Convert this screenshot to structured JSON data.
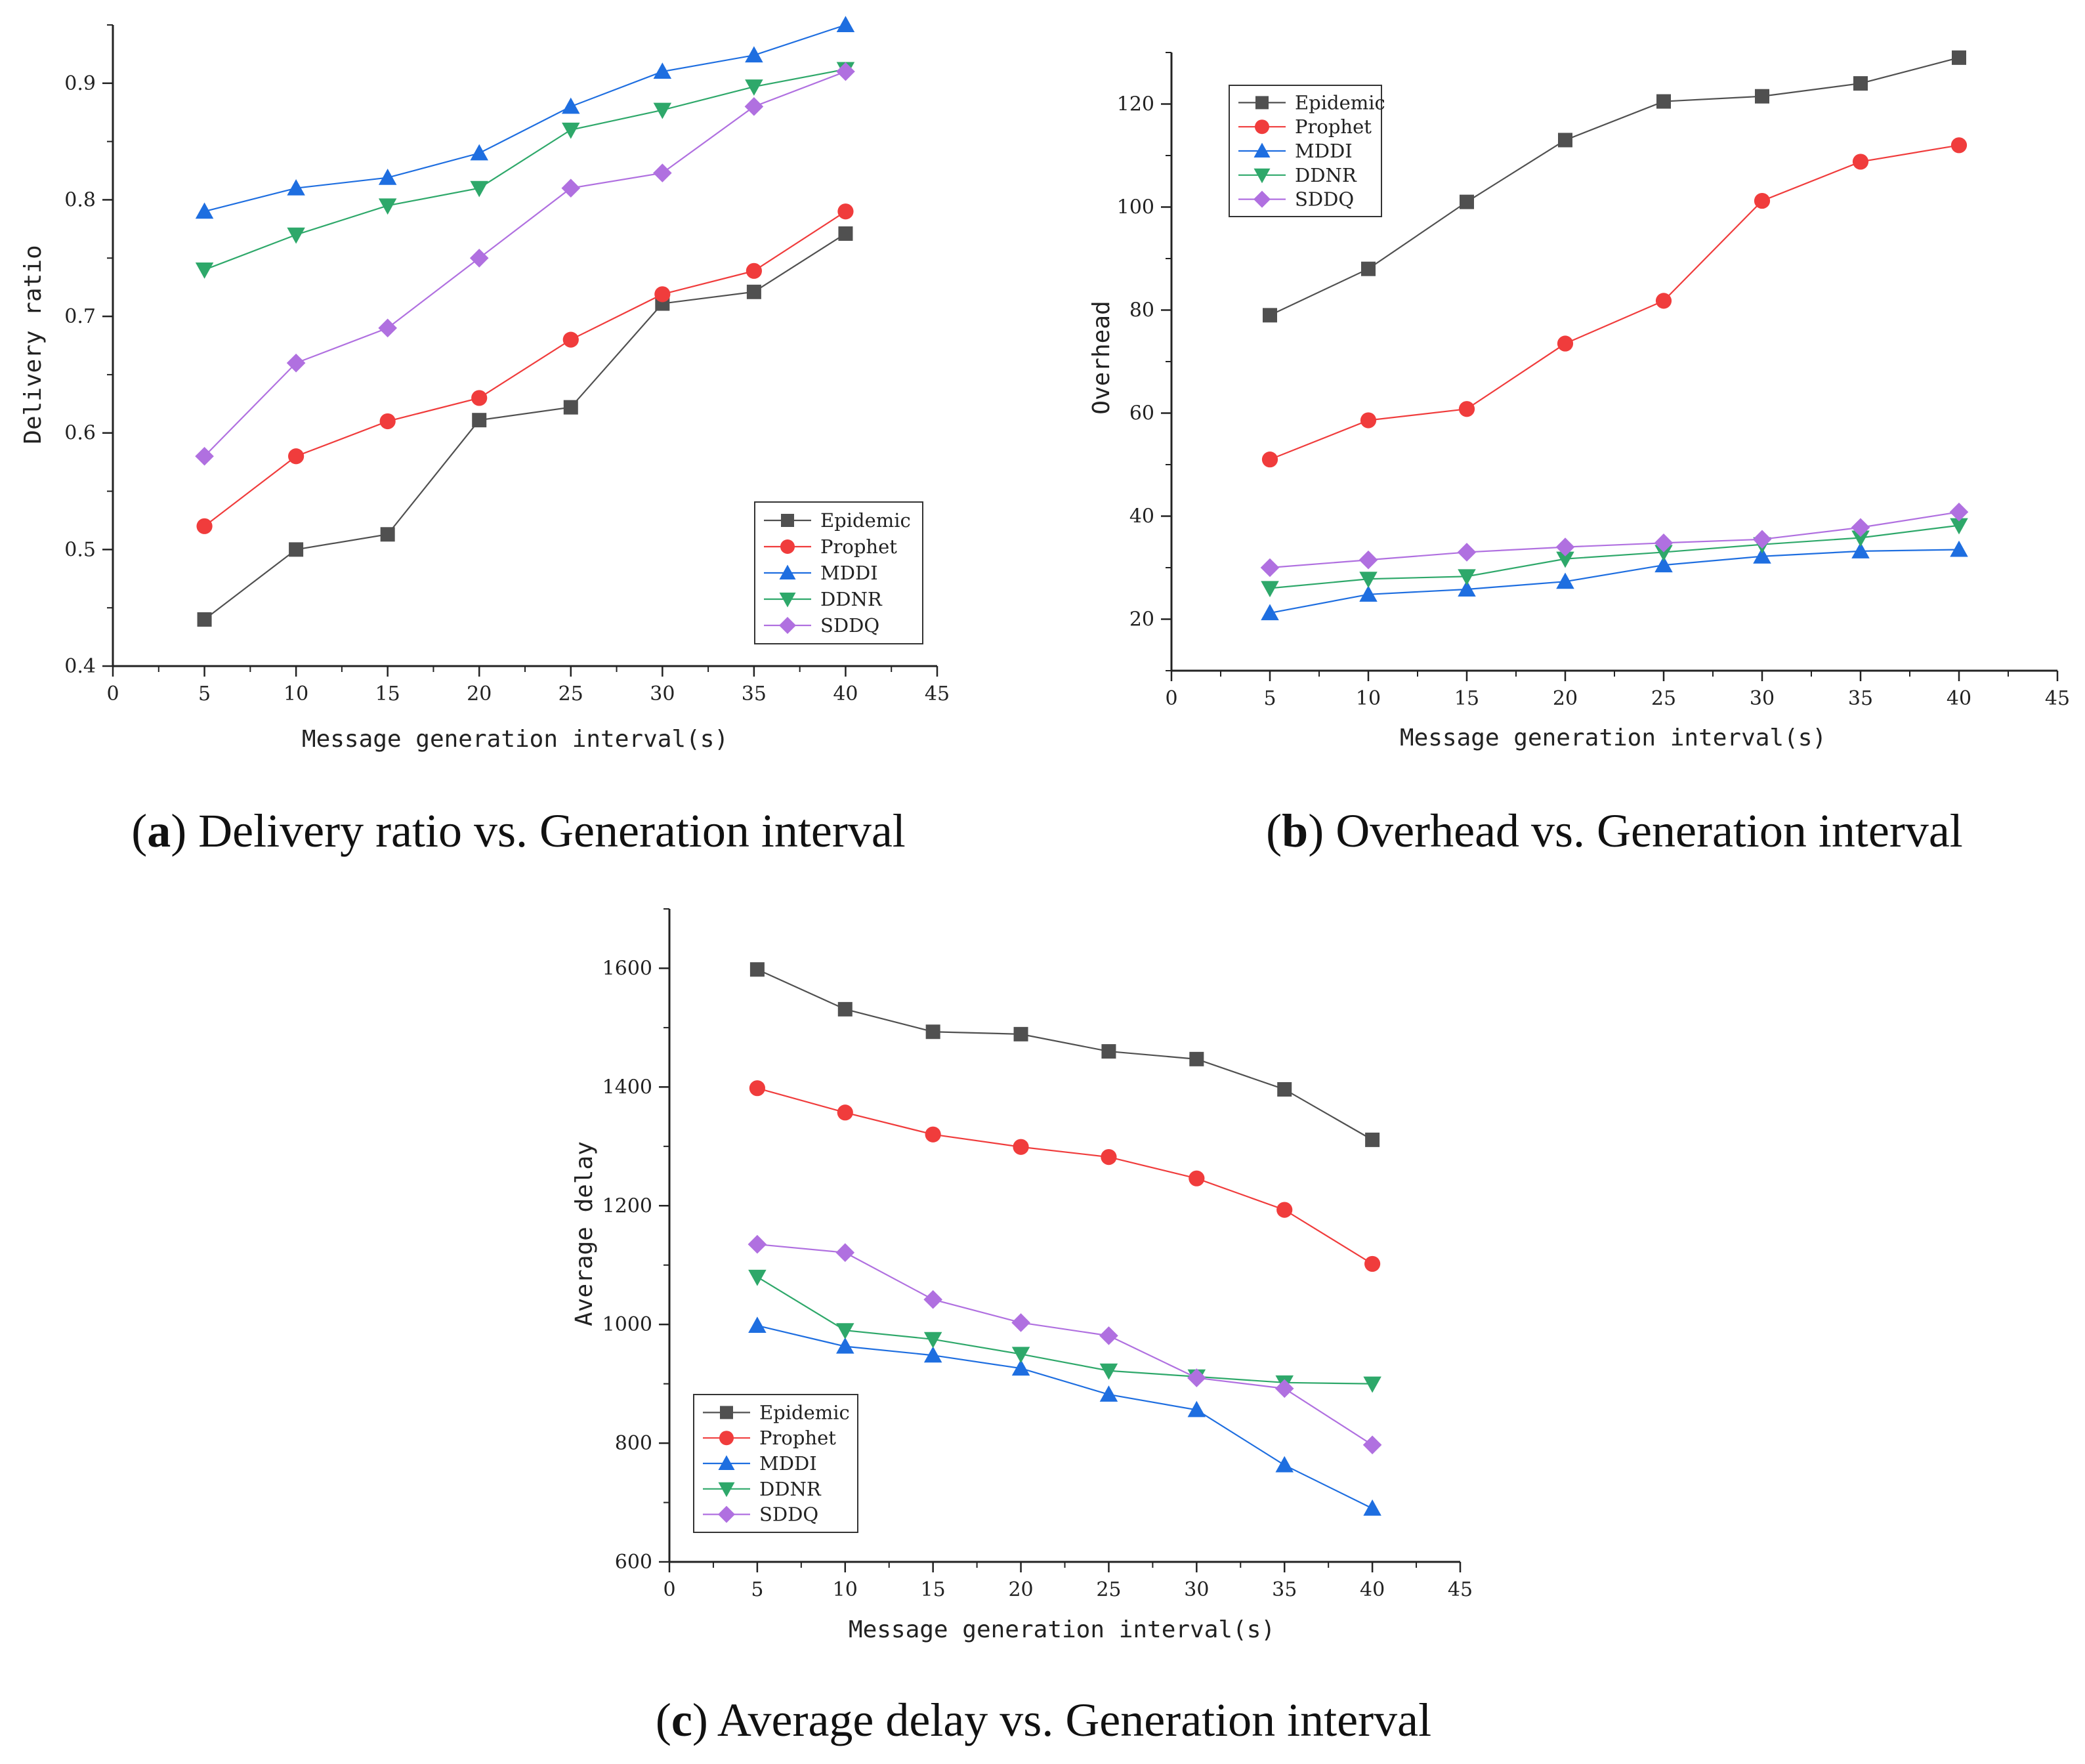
{
  "series_styles": [
    {
      "name": "Epidemic",
      "color": "#505050",
      "marker": "square"
    },
    {
      "name": "Prophet",
      "color": "#f03c3c",
      "marker": "circle"
    },
    {
      "name": "MDDI",
      "color": "#1e6ee0",
      "marker": "triangle-up"
    },
    {
      "name": "DDNR",
      "color": "#2ea86a",
      "marker": "triangle-down"
    },
    {
      "name": "SDDQ",
      "color": "#b070e0",
      "marker": "diamond"
    }
  ],
  "chart_data": [
    {
      "type": "line",
      "caption_letter": "a",
      "caption_text": "Delivery ratio vs. Generation interval",
      "xlabel": "Message generation interval(s)",
      "ylabel": "Delivery ratio",
      "xlim": [
        0,
        45
      ],
      "ylim": [
        0.4,
        0.95
      ],
      "xticks": [
        0,
        5,
        10,
        15,
        20,
        25,
        30,
        35,
        40,
        45
      ],
      "xtick_labels": [
        "0",
        "5",
        "10",
        "15",
        "20",
        "25",
        "30",
        "35",
        "40",
        "45"
      ],
      "yticks": [
        0.4,
        0.5,
        0.6,
        0.7,
        0.8,
        0.9
      ],
      "ytick_labels": [
        "0.4",
        "0.5",
        "0.6",
        "0.7",
        "0.8",
        "0.9"
      ],
      "legend_position": "bottom-right",
      "x": [
        5,
        10,
        15,
        20,
        25,
        30,
        35,
        40
      ],
      "series": [
        {
          "name": "Epidemic",
          "values": [
            0.44,
            0.5,
            0.513,
            0.611,
            0.622,
            0.711,
            0.721,
            0.771
          ]
        },
        {
          "name": "Prophet",
          "values": [
            0.52,
            0.58,
            0.61,
            0.63,
            0.68,
            0.719,
            0.739,
            0.79
          ]
        },
        {
          "name": "MDDI",
          "values": [
            0.79,
            0.81,
            0.819,
            0.84,
            0.88,
            0.91,
            0.924,
            0.95
          ]
        },
        {
          "name": "DDNR",
          "values": [
            0.74,
            0.77,
            0.795,
            0.81,
            0.86,
            0.877,
            0.897,
            0.912
          ]
        },
        {
          "name": "SDDQ",
          "values": [
            0.58,
            0.66,
            0.69,
            0.75,
            0.81,
            0.823,
            0.88,
            0.91
          ]
        }
      ]
    },
    {
      "type": "line",
      "caption_letter": "b",
      "caption_text": "Overhead vs. Generation interval",
      "xlabel": "Message generation interval(s)",
      "ylabel": "Overhead",
      "xlim": [
        0,
        45
      ],
      "ylim": [
        10,
        130
      ],
      "xticks": [
        0,
        5,
        10,
        15,
        20,
        25,
        30,
        35,
        40,
        45
      ],
      "xtick_labels": [
        "0",
        "5",
        "10",
        "15",
        "20",
        "25",
        "30",
        "35",
        "40",
        "45"
      ],
      "yticks": [
        20,
        40,
        60,
        80,
        100,
        120
      ],
      "ytick_labels": [
        "20",
        "40",
        "60",
        "80",
        "100",
        "120"
      ],
      "legend_position": "top-left",
      "x": [
        5,
        10,
        15,
        20,
        25,
        30,
        35,
        40
      ],
      "series": [
        {
          "name": "Epidemic",
          "values": [
            79,
            88,
            101,
            113,
            120.5,
            121.5,
            124,
            129
          ]
        },
        {
          "name": "Prophet",
          "values": [
            51,
            58.6,
            60.8,
            73.5,
            81.8,
            101.2,
            108.8,
            112
          ]
        },
        {
          "name": "MDDI",
          "values": [
            21.2,
            24.8,
            25.8,
            27.3,
            30.5,
            32.2,
            33.2,
            33.5
          ]
        },
        {
          "name": "DDNR",
          "values": [
            26,
            27.8,
            28.3,
            31.7,
            33,
            34.5,
            35.8,
            38.2
          ]
        },
        {
          "name": "SDDQ",
          "values": [
            30,
            31.5,
            33,
            34,
            34.8,
            35.5,
            37.8,
            40.8
          ]
        }
      ]
    },
    {
      "type": "line",
      "caption_letter": "c",
      "caption_text": "Average delay vs. Generation interval",
      "xlabel": "Message generation interval(s)",
      "ylabel": "Average delay",
      "xlim": [
        0,
        45
      ],
      "ylim": [
        600,
        1700
      ],
      "xticks": [
        0,
        5,
        10,
        15,
        20,
        25,
        30,
        35,
        40,
        45
      ],
      "xtick_labels": [
        "0",
        "5",
        "10",
        "15",
        "20",
        "25",
        "30",
        "35",
        "40",
        "45"
      ],
      "yticks": [
        600,
        800,
        1000,
        1200,
        1400,
        1600
      ],
      "ytick_labels": [
        "600",
        "800",
        "1000",
        "1200",
        "1400",
        "1600"
      ],
      "legend_position": "bottom-left",
      "x": [
        5,
        10,
        15,
        20,
        25,
        30,
        35,
        40
      ],
      "series": [
        {
          "name": "Epidemic",
          "values": [
            1598,
            1531,
            1493,
            1489,
            1460,
            1447,
            1396,
            1311
          ]
        },
        {
          "name": "Prophet",
          "values": [
            1398,
            1357,
            1320,
            1299,
            1282,
            1246,
            1193,
            1102
          ]
        },
        {
          "name": "MDDI",
          "values": [
            998,
            963,
            948,
            926,
            882,
            856,
            763,
            690
          ]
        },
        {
          "name": "DDNR",
          "values": [
            1080,
            990,
            975,
            950,
            922,
            912,
            902,
            900
          ]
        },
        {
          "name": "SDDQ",
          "values": [
            1135,
            1121,
            1042,
            1003,
            981,
            910,
            892,
            797
          ]
        }
      ]
    }
  ]
}
